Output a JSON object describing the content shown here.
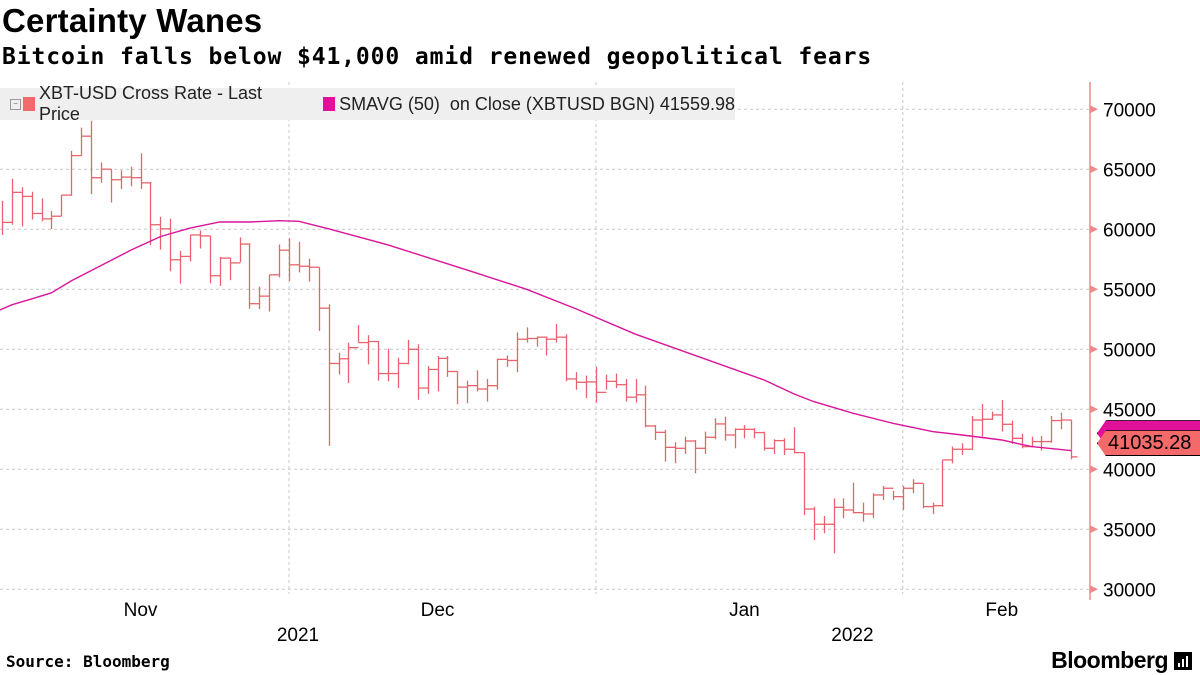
{
  "header": {
    "title": "Certainty Wanes",
    "subtitle": "Bitcoin falls below $41,000 amid renewed geopolitical fears"
  },
  "footer": {
    "source": "Source: Bloomberg",
    "logo": "Bloomberg"
  },
  "colors": {
    "price": "#e8636b",
    "sma": "#d9159b",
    "axis": "#f08a8a",
    "grid": "#c8c8c8",
    "legend_bg": "#efefef"
  },
  "chart_data": {
    "type": "ohlc-bar-with-line",
    "legend": [
      {
        "label": "XBT-USD Cross Rate - Last Price",
        "color": "#f26a6a"
      },
      {
        "label": "SMAVG (50)  on Close (XBTUSD BGN) 41559.98",
        "color": "#e0109a"
      }
    ],
    "legend_placement": "top-left",
    "y_axis": {
      "position": "right",
      "ylim": [
        30000,
        70000
      ],
      "ticks": [
        "30000",
        "35000",
        "40000",
        "45000",
        "50000",
        "55000",
        "60000",
        "65000",
        "70000"
      ]
    },
    "x_axis": {
      "range": [
        "2021-11-01",
        "2022-02-21"
      ],
      "month_labels": [
        {
          "label": "Nov",
          "date": "2021-11-16"
        },
        {
          "label": "Dec",
          "date": "2021-12-16"
        },
        {
          "label": "Jan",
          "date": "2022-01-16"
        },
        {
          "label": "Feb",
          "date": "2022-02-11"
        }
      ],
      "year_labels": [
        {
          "label": "2021",
          "date": "2021-12-01"
        },
        {
          "label": "2022",
          "date": "2022-01-26"
        }
      ],
      "gridlines": [
        "2021-12-01",
        "2022-01-01",
        "2022-02-01"
      ]
    },
    "grid": true,
    "last_price_tag": "41035.28",
    "last_price": 41035.28,
    "last_sma": 41559.98,
    "bar_fields": [
      "date",
      "high",
      "low",
      "close"
    ],
    "price_bars": [
      [
        "2021-11-02",
        62370,
        59530,
        60580
      ],
      [
        "2021-11-03",
        64210,
        60380,
        63080
      ],
      [
        "2021-11-04",
        63500,
        60240,
        62740
      ],
      [
        "2021-11-05",
        63130,
        60810,
        61320
      ],
      [
        "2021-11-06",
        62570,
        60670,
        60870
      ],
      [
        "2021-11-07",
        61520,
        60010,
        61090
      ],
      [
        "2021-11-08",
        62850,
        61090,
        62850
      ],
      [
        "2021-11-09",
        66540,
        62790,
        66140
      ],
      [
        "2021-11-10",
        68470,
        66140,
        67760
      ],
      [
        "2021-11-11",
        69040,
        62940,
        64300
      ],
      [
        "2021-11-12",
        65570,
        63870,
        65010
      ],
      [
        "2021-11-13",
        65010,
        62230,
        64130
      ],
      [
        "2021-11-14",
        64920,
        63360,
        64350
      ],
      [
        "2021-11-15",
        65210,
        63590,
        64300
      ],
      [
        "2021-11-16",
        66340,
        63360,
        63870
      ],
      [
        "2021-11-17",
        63930,
        58680,
        60380
      ],
      [
        "2021-11-18",
        61040,
        58310,
        60040
      ],
      [
        "2021-11-19",
        60890,
        56500,
        57460
      ],
      [
        "2021-11-20",
        58200,
        55470,
        57740
      ],
      [
        "2021-11-21",
        59530,
        57320,
        59530
      ],
      [
        "2021-11-22",
        59900,
        58400,
        59450
      ],
      [
        "2021-11-23",
        59450,
        55500,
        56130
      ],
      [
        "2021-11-24",
        57690,
        55280,
        57600
      ],
      [
        "2021-11-25",
        57630,
        55760,
        57200
      ],
      [
        "2021-11-26",
        59330,
        57260,
        58770
      ],
      [
        "2021-11-27",
        58770,
        53380,
        53800
      ],
      [
        "2021-11-28",
        55220,
        53350,
        54430
      ],
      [
        "2021-11-29",
        56210,
        53150,
        56210
      ],
      [
        "2021-11-30",
        58740,
        55990,
        58260
      ],
      [
        "2021-12-01",
        59250,
        55700,
        57040
      ],
      [
        "2021-12-02",
        58960,
        56410,
        56920
      ],
      [
        "2021-12-03",
        57550,
        55650,
        56840
      ],
      [
        "2021-12-04",
        56840,
        51530,
        53430
      ],
      [
        "2021-12-05",
        53750,
        41950,
        48820
      ],
      [
        "2021-12-06",
        49720,
        47890,
        49210
      ],
      [
        "2021-12-07",
        50560,
        47190,
        50140
      ],
      [
        "2021-12-08",
        52020,
        50560,
        50560
      ],
      [
        "2021-12-09",
        51180,
        48740,
        50650
      ],
      [
        "2021-12-10",
        50700,
        47390,
        47980
      ],
      [
        "2021-12-11",
        50060,
        47330,
        47980
      ],
      [
        "2021-12-12",
        49300,
        46770,
        48820
      ],
      [
        "2021-12-13",
        50790,
        48740,
        50000
      ],
      [
        "2021-12-14",
        50420,
        45790,
        46770
      ],
      [
        "2021-12-15",
        48600,
        46290,
        48320
      ],
      [
        "2021-12-16",
        49440,
        46490,
        49240
      ],
      [
        "2021-12-17",
        49440,
        47700,
        48150
      ],
      [
        "2021-12-18",
        48170,
        45420,
        46850
      ],
      [
        "2021-12-19",
        47390,
        45510,
        46970
      ],
      [
        "2021-12-20",
        48260,
        46490,
        46690
      ],
      [
        "2021-12-21",
        47530,
        45650,
        46970
      ],
      [
        "2021-12-22",
        49210,
        46630,
        49160
      ],
      [
        "2021-12-23",
        49490,
        48540,
        49070
      ],
      [
        "2021-12-24",
        51410,
        48090,
        50840
      ],
      [
        "2021-12-25",
        51830,
        50560,
        50900
      ],
      [
        "2021-12-26",
        51070,
        50230,
        51010
      ],
      [
        "2021-12-27",
        50980,
        49490,
        50840
      ],
      [
        "2021-12-28",
        52110,
        50560,
        51010
      ],
      [
        "2021-12-29",
        51260,
        47330,
        47530
      ],
      [
        "2021-12-30",
        48090,
        46630,
        47250
      ],
      [
        "2021-12-31",
        47810,
        45930,
        47280
      ],
      [
        "2022-01-01",
        48540,
        45560,
        46410
      ],
      [
        "2022-01-02",
        47890,
        46630,
        47330
      ],
      [
        "2022-01-03",
        47980,
        46770,
        47050
      ],
      [
        "2022-01-04",
        47530,
        45650,
        46010
      ],
      [
        "2022-01-05",
        47530,
        45560,
        46210
      ],
      [
        "2022-01-06",
        46970,
        43500,
        43610
      ],
      [
        "2022-01-07",
        43690,
        42440,
        43080
      ],
      [
        "2022-01-08",
        43280,
        40640,
        41830
      ],
      [
        "2022-01-09",
        42250,
        40500,
        41750
      ],
      [
        "2022-01-10",
        42720,
        41280,
        42360
      ],
      [
        "2022-01-11",
        42440,
        39670,
        41750
      ],
      [
        "2022-01-12",
        43140,
        41280,
        42670
      ],
      [
        "2022-01-13",
        44250,
        42500,
        43780
      ],
      [
        "2022-01-14",
        44390,
        42390,
        42860
      ],
      [
        "2022-01-15",
        43420,
        41750,
        43330
      ],
      [
        "2022-01-16",
        43690,
        42580,
        43330
      ],
      [
        "2022-01-17",
        43420,
        42580,
        43060
      ],
      [
        "2022-01-18",
        43140,
        41560,
        41750
      ],
      [
        "2022-01-19",
        42500,
        41280,
        42390
      ],
      [
        "2022-01-20",
        42580,
        41190,
        41670
      ],
      [
        "2022-01-21",
        43500,
        41330,
        41390
      ],
      [
        "2022-01-22",
        41390,
        36190,
        36690
      ],
      [
        "2022-01-23",
        36890,
        34110,
        35420
      ],
      [
        "2022-01-24",
        36110,
        34670,
        35420
      ],
      [
        "2022-01-25",
        37580,
        33000,
        36830
      ],
      [
        "2022-01-26",
        37580,
        35920,
        36610
      ],
      [
        "2022-01-27",
        38890,
        36330,
        36390
      ],
      [
        "2022-01-28",
        37220,
        35640,
        36280
      ],
      [
        "2022-01-29",
        38000,
        35920,
        37860
      ],
      [
        "2022-01-30",
        38610,
        37440,
        38420
      ],
      [
        "2022-01-31",
        38220,
        37440,
        37720
      ],
      [
        "2022-02-01",
        38610,
        36610,
        38420
      ],
      [
        "2022-02-02",
        39170,
        38000,
        38830
      ],
      [
        "2022-02-03",
        38830,
        36750,
        36890
      ],
      [
        "2022-02-04",
        37220,
        36280,
        36970
      ],
      [
        "2022-02-05",
        40780,
        36890,
        40780
      ],
      [
        "2022-02-06",
        41890,
        40500,
        41670
      ],
      [
        "2022-02-07",
        42170,
        41190,
        41670
      ],
      [
        "2022-02-08",
        44440,
        41610,
        44110
      ],
      [
        "2022-02-09",
        45440,
        42720,
        44170
      ],
      [
        "2022-02-10",
        44810,
        44110,
        44530
      ],
      [
        "2022-02-11",
        45780,
        43140,
        43750
      ],
      [
        "2022-02-12",
        44060,
        42110,
        42580
      ],
      [
        "2022-02-13",
        42940,
        41750,
        41890
      ],
      [
        "2022-02-14",
        42720,
        41940,
        42310
      ],
      [
        "2022-02-15",
        42780,
        41560,
        42310
      ],
      [
        "2022-02-16",
        44440,
        42220,
        44060
      ],
      [
        "2022-02-17",
        44720,
        43330,
        44110
      ],
      [
        "2022-02-18",
        44110,
        40830,
        41035.28
      ]
    ],
    "sma_50": [
      [
        "2021-11-01",
        53000
      ],
      [
        "2021-11-03",
        53710
      ],
      [
        "2021-11-05",
        54200
      ],
      [
        "2021-11-07",
        54710
      ],
      [
        "2021-11-09",
        55700
      ],
      [
        "2021-11-15",
        58250
      ],
      [
        "2021-11-18",
        59390
      ],
      [
        "2021-11-21",
        60100
      ],
      [
        "2021-11-24",
        60610
      ],
      [
        "2021-11-27",
        60610
      ],
      [
        "2021-11-30",
        60720
      ],
      [
        "2021-12-02",
        60670
      ],
      [
        "2021-12-05",
        60040
      ],
      [
        "2021-12-11",
        58700
      ],
      [
        "2021-12-19",
        56600
      ],
      [
        "2021-12-25",
        55000
      ],
      [
        "2021-12-30",
        53370
      ],
      [
        "2022-01-05",
        51260
      ],
      [
        "2022-01-18",
        47440
      ],
      [
        "2022-01-21",
        46280
      ],
      [
        "2022-01-23",
        45640
      ],
      [
        "2022-01-27",
        44670
      ],
      [
        "2022-01-31",
        43830
      ],
      [
        "2022-02-04",
        43140
      ],
      [
        "2022-02-07",
        42860
      ],
      [
        "2022-02-11",
        42440
      ],
      [
        "2022-02-14",
        41890
      ],
      [
        "2022-02-18",
        41560
      ]
    ]
  }
}
